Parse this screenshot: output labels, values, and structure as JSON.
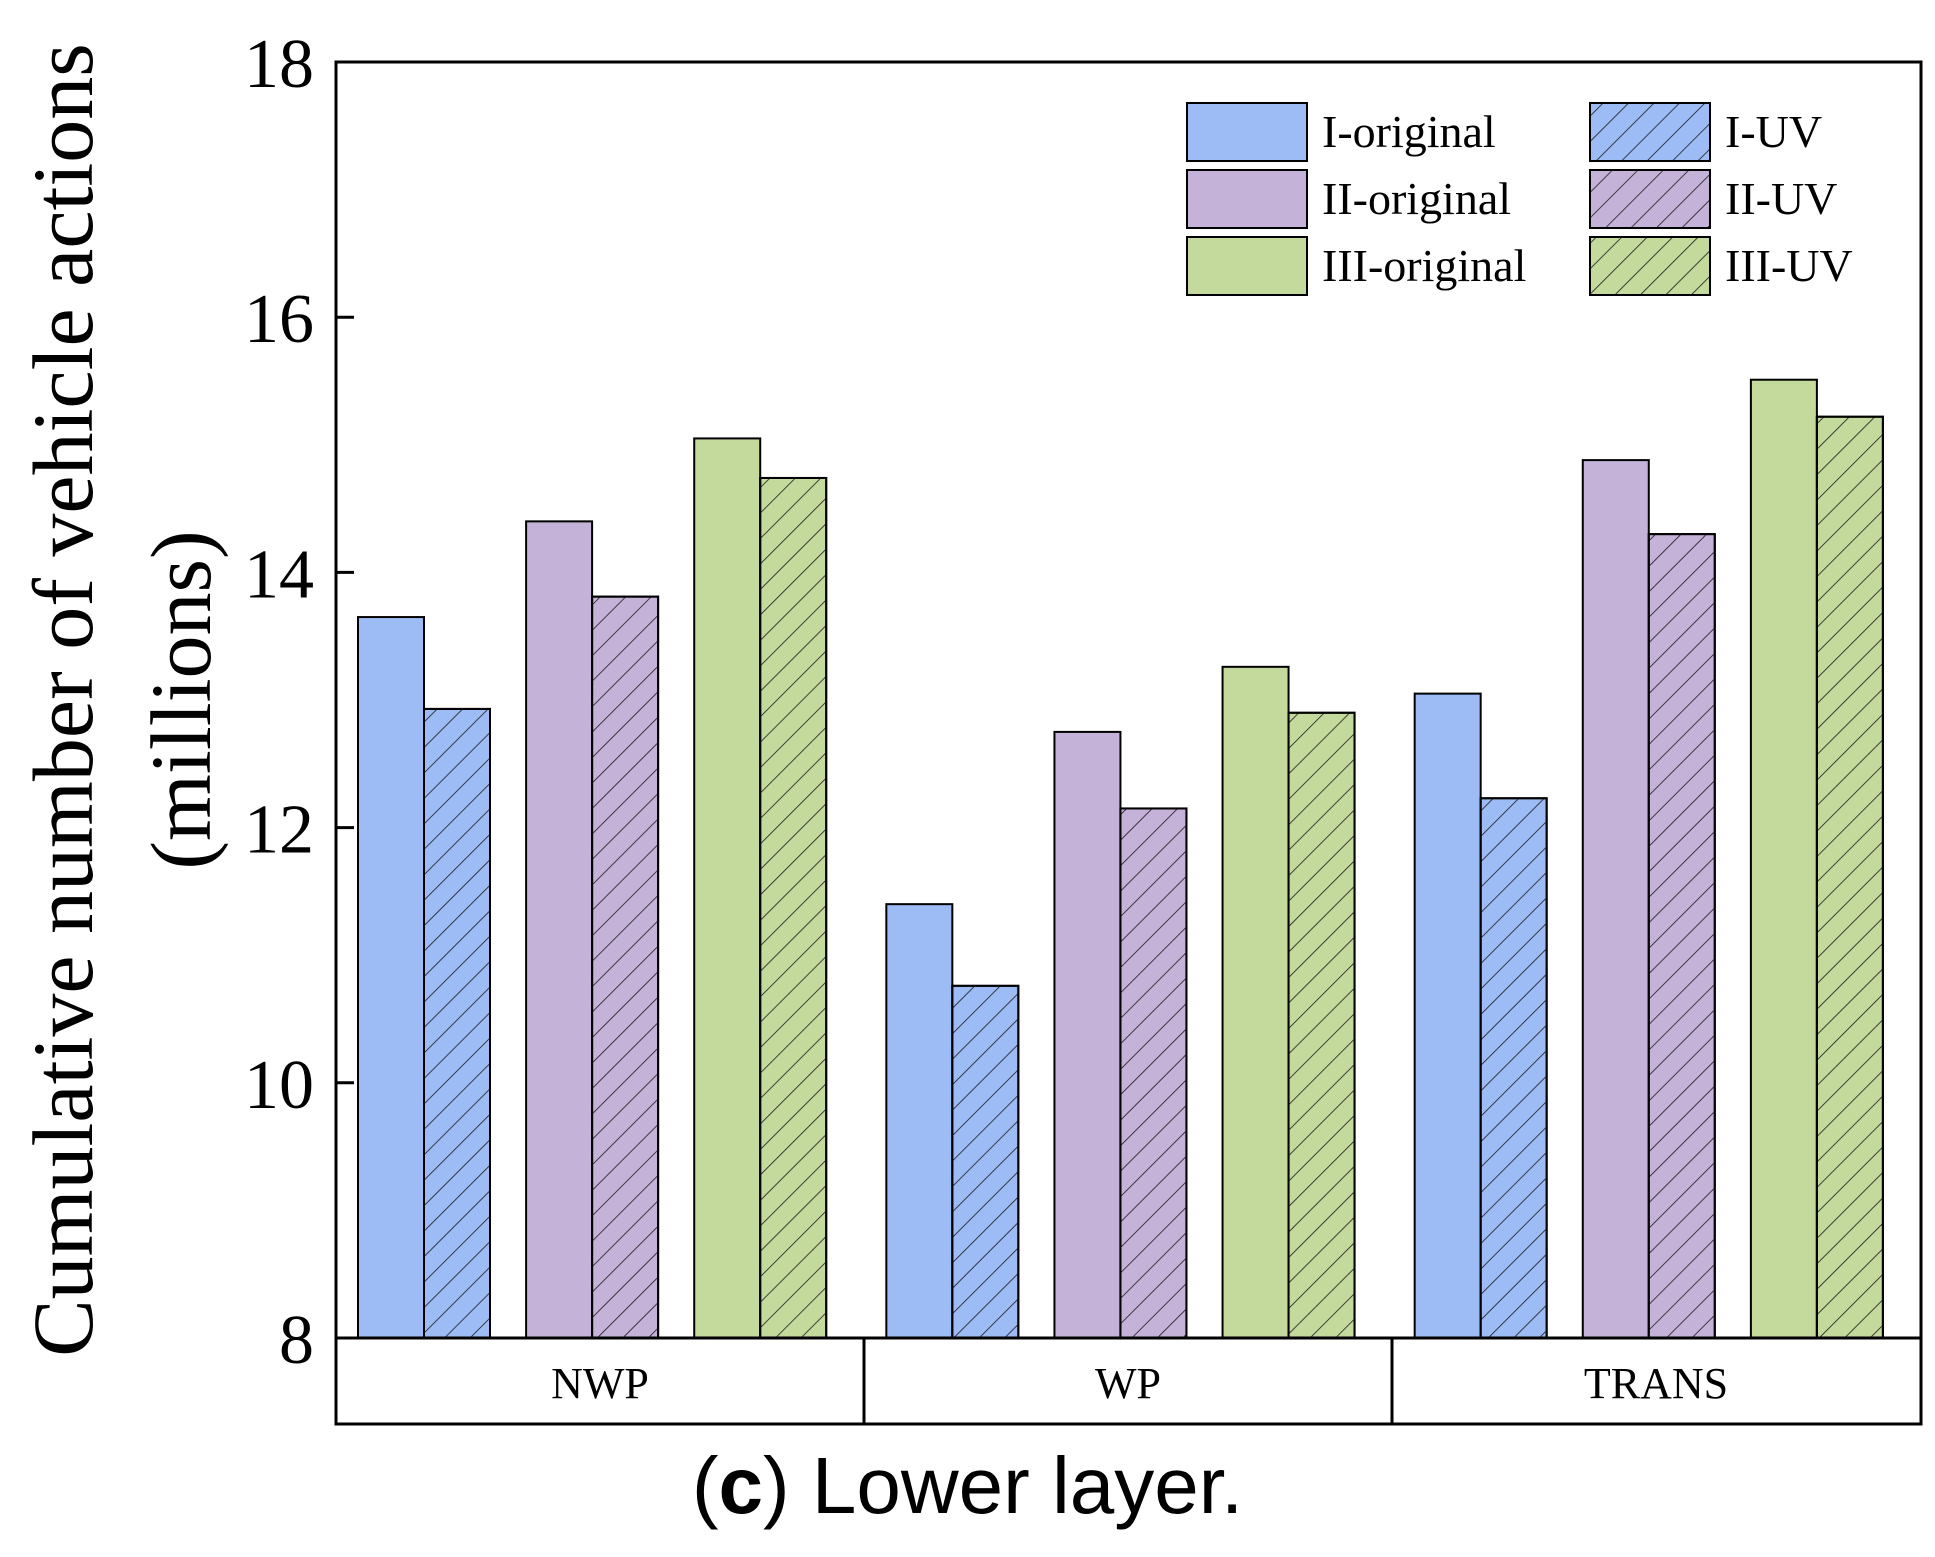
{
  "chart_data": {
    "type": "bar",
    "title": "",
    "ylabel_line1": "Cumulative number of vehicle actions",
    "ylabel_line2": "(millions)",
    "xlabel": "",
    "ylim": [
      8,
      18
    ],
    "yticks": [
      "8",
      "10",
      "12",
      "14",
      "16",
      "18"
    ],
    "categories": [
      "NWP",
      "WP",
      "TRANS"
    ],
    "series": [
      {
        "name": "I-original",
        "color": "#9dbbf5",
        "hatch": false,
        "values": [
          13.65,
          11.4,
          13.05
        ]
      },
      {
        "name": "I-UV",
        "color": "#9dbbf5",
        "hatch": true,
        "values": [
          12.93,
          10.76,
          12.23
        ]
      },
      {
        "name": "II-original",
        "color": "#c4b2d8",
        "hatch": false,
        "values": [
          14.4,
          12.75,
          14.88
        ]
      },
      {
        "name": "II-UV",
        "color": "#c4b2d8",
        "hatch": true,
        "values": [
          13.81,
          12.15,
          14.3
        ]
      },
      {
        "name": "III-original",
        "color": "#c4d99c",
        "hatch": false,
        "values": [
          15.05,
          13.26,
          15.51
        ]
      },
      {
        "name": "III-UV",
        "color": "#c4d99c",
        "hatch": true,
        "values": [
          14.74,
          12.9,
          15.22
        ]
      }
    ],
    "legend_position": "top-right"
  },
  "caption": {
    "open_paren": "(",
    "letter": "c",
    "rest": ") Lower layer."
  }
}
